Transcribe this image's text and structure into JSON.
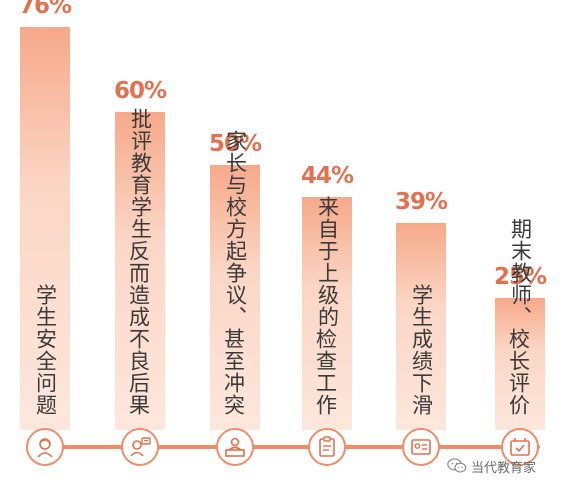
{
  "chart_data": {
    "type": "bar",
    "categories": [
      "学生安全问题",
      "批评教育学生反而造成不良后果",
      "家长与校方起争议、甚至冲突",
      "来自于上级的检查工作",
      "学生成绩下滑",
      "期末教师、校长评价"
    ],
    "label_columns": [
      [
        "学生安全问题"
      ],
      [
        "批评教育学生",
        "反而造成不良后果"
      ],
      [
        "家长与校方起争议、",
        "甚至冲突"
      ],
      [
        "来自于上级的",
        "检查工作"
      ],
      [
        "学生成绩下滑"
      ],
      [
        "期末教师、",
        "校长评价"
      ]
    ],
    "values": [
      76,
      60,
      50,
      44,
      39,
      25
    ],
    "value_labels": [
      "76%",
      "60%",
      "50%",
      "44%",
      "39%",
      "25%"
    ],
    "ylim": [
      0,
      100
    ],
    "title": "",
    "xlabel": "",
    "ylabel": "",
    "grid": false,
    "bar_color": "#f6a98a",
    "accent_color": "#e3714e",
    "icons": [
      "student-icon",
      "reprimand-icon",
      "parent-meeting-icon",
      "inspection-clipboard-icon",
      "grade-report-icon",
      "evaluation-icon"
    ]
  },
  "watermark": {
    "text": "当代教育家",
    "icon": "wechat-icon"
  }
}
